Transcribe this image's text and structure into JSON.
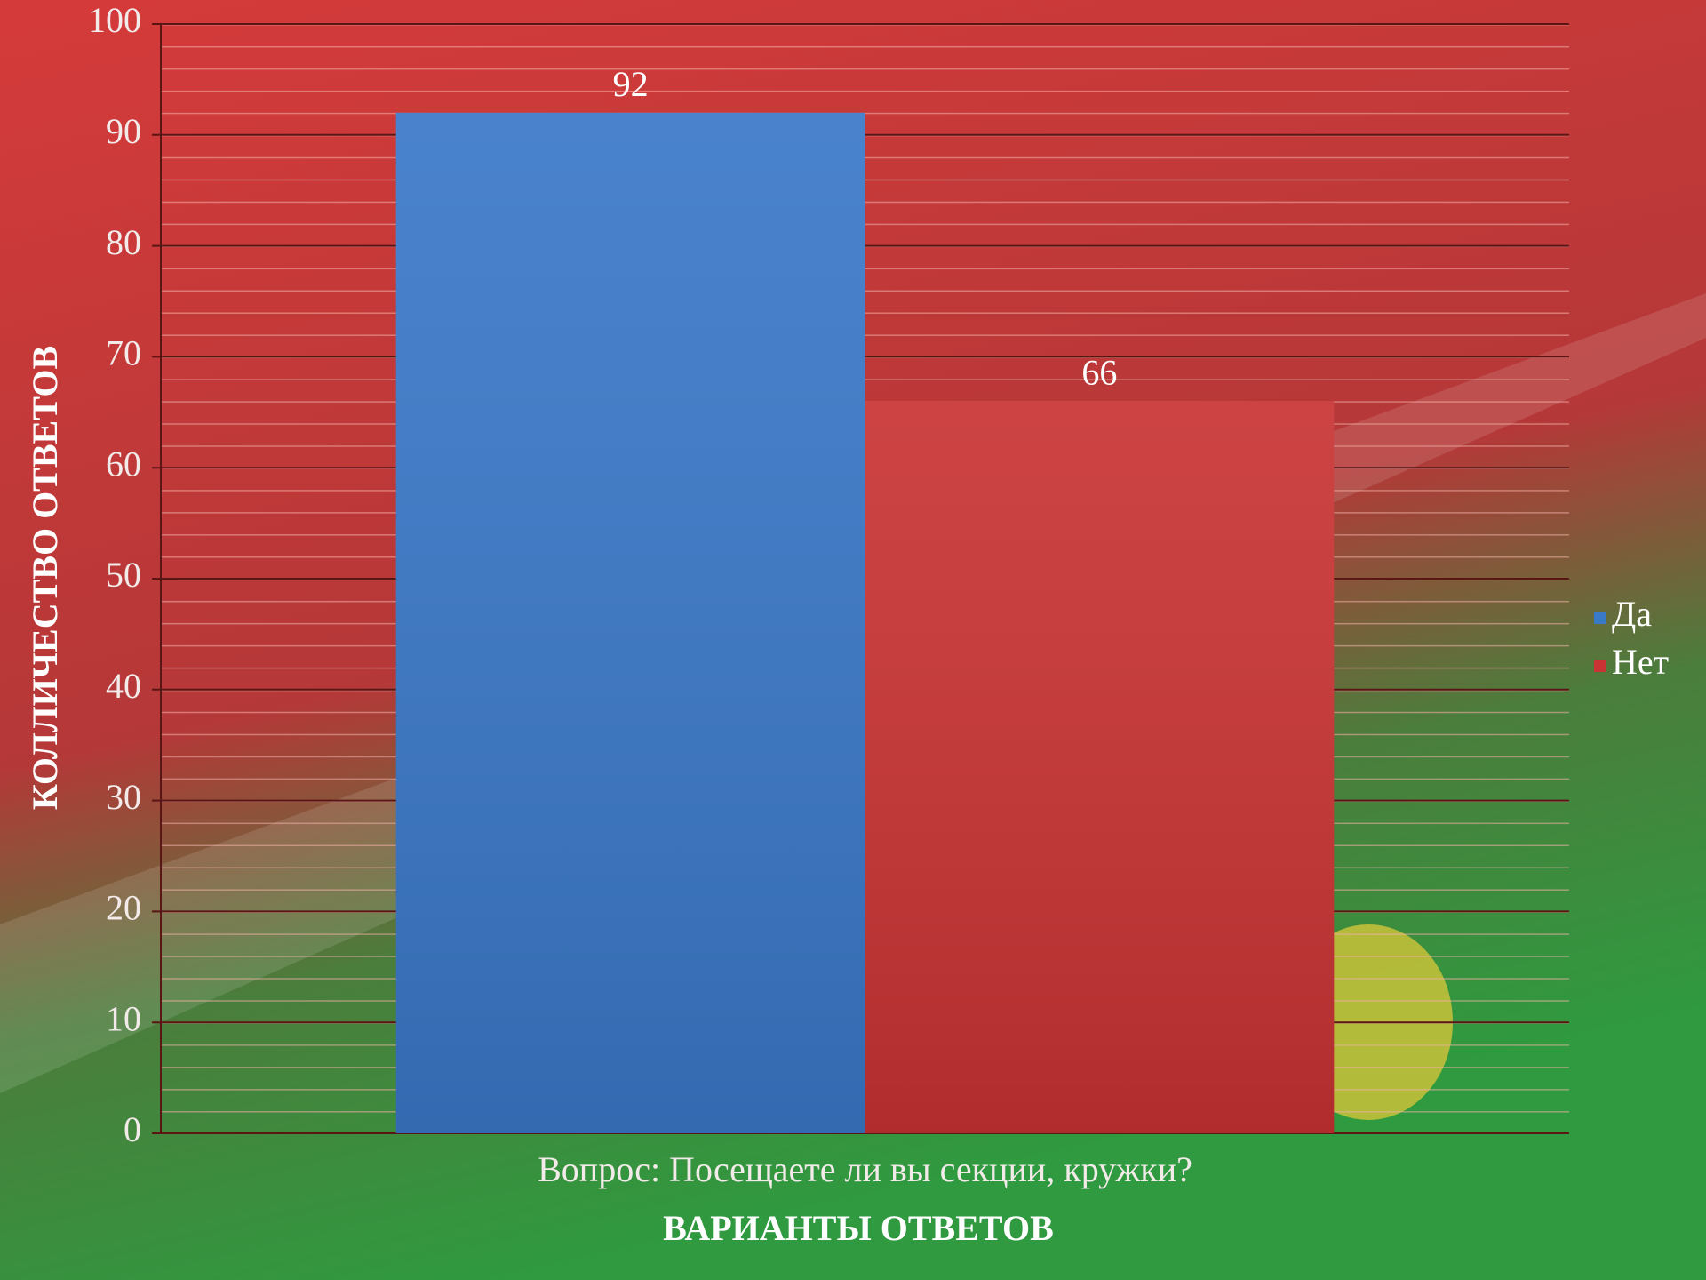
{
  "chart_data": {
    "type": "bar",
    "categories": [
      "Вопрос: Посещаете ли вы секции, кружки?"
    ],
    "series": [
      {
        "name": "Да",
        "color": "#3a78c8",
        "values": [
          92
        ]
      },
      {
        "name": "Нет",
        "color": "#c93333",
        "values": [
          66
        ]
      }
    ],
    "xlabel": "ВАРИАНТЫ ОТВЕТОВ",
    "ylabel": "КОЛЛИЧЕСТВО ОТВЕТОВ",
    "ylim": [
      0,
      100
    ],
    "yticks": [
      0,
      10,
      20,
      30,
      40,
      50,
      60,
      70,
      80,
      90,
      100
    ],
    "grid": true,
    "legend": "right"
  }
}
